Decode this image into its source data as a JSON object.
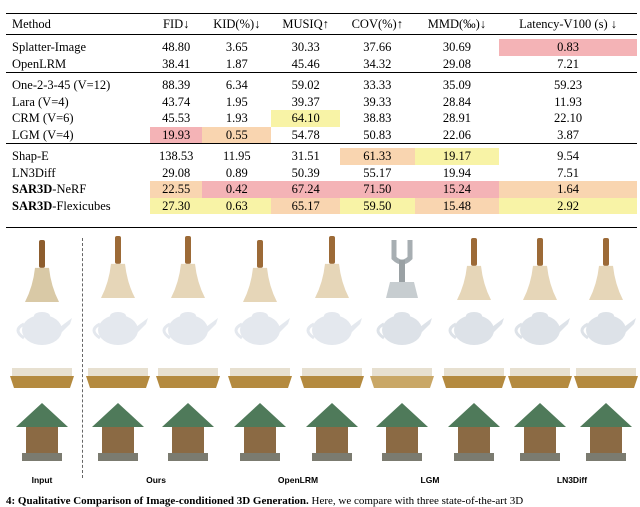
{
  "table": {
    "headers": [
      "Method",
      "FID↓",
      "KID(%)↓",
      "MUSIQ↑",
      "COV(%)↑",
      "MMD(‰)↓",
      "Latency-V100 (s) ↓"
    ],
    "groups": [
      [
        {
          "method": "Splatter-Image",
          "values": [
            "48.80",
            "3.65",
            "30.33",
            "37.66",
            "30.69",
            "0.83"
          ]
        },
        {
          "method": "OpenLRM",
          "values": [
            "38.41",
            "1.87",
            "45.46",
            "34.32",
            "29.08",
            "7.21"
          ]
        }
      ],
      [
        {
          "method": "One-2-3-45 (V=12)",
          "values": [
            "88.39",
            "6.34",
            "59.02",
            "33.33",
            "35.09",
            "59.23"
          ]
        },
        {
          "method": "Lara (V=4)",
          "values": [
            "43.74",
            "1.95",
            "39.37",
            "39.33",
            "28.84",
            "11.93"
          ]
        },
        {
          "method": "CRM (V=6)",
          "values": [
            "45.53",
            "1.93",
            "64.10",
            "38.83",
            "28.91",
            "22.10"
          ]
        },
        {
          "method": "LGM (V=4)",
          "values": [
            "19.93",
            "0.55",
            "54.78",
            "50.83",
            "22.06",
            "3.87"
          ]
        }
      ],
      [
        {
          "method": "Shap-E",
          "values": [
            "138.53",
            "11.95",
            "31.51",
            "61.33",
            "19.17",
            "9.54"
          ]
        },
        {
          "method": "LN3Diff",
          "values": [
            "29.08",
            "0.89",
            "50.39",
            "55.17",
            "19.94",
            "7.51"
          ]
        },
        {
          "method_bold": "SAR3D",
          "method": "-NeRF",
          "values": [
            "22.55",
            "0.42",
            "67.24",
            "71.50",
            "15.24",
            "1.64"
          ]
        },
        {
          "method_bold": "SAR3D",
          "method": "-Flexicubes",
          "values": [
            "27.30",
            "0.63",
            "65.17",
            "59.50",
            "15.48",
            "2.92"
          ]
        }
      ]
    ],
    "highlights": [
      [
        [
          null,
          null,
          null,
          null,
          null,
          "pink"
        ],
        [
          null,
          null,
          null,
          null,
          null,
          null
        ]
      ],
      [
        [
          null,
          null,
          null,
          null,
          null,
          null
        ],
        [
          null,
          null,
          null,
          null,
          null,
          null
        ],
        [
          null,
          null,
          "yellow",
          null,
          null,
          null
        ],
        [
          "pink",
          "orange",
          null,
          null,
          null,
          null
        ]
      ],
      [
        [
          null,
          null,
          null,
          "orange",
          "yellow",
          null
        ],
        [
          null,
          null,
          null,
          null,
          null,
          null
        ],
        [
          "orange",
          "pink",
          "pink",
          "pink",
          "pink",
          "orange"
        ],
        [
          "yellow",
          "yellow",
          "orange",
          "yellow",
          "orange",
          "yellow"
        ]
      ]
    ]
  },
  "gallery": {
    "labels": [
      "Input",
      "Ours",
      "OpenLRM",
      "LGM",
      "LN3Diff"
    ]
  },
  "caption": {
    "bold": "4: Qualitative Comparison of Image-conditioned 3D Generation.",
    "text": " Here, we compare with three state-of-the-art 3D"
  }
}
